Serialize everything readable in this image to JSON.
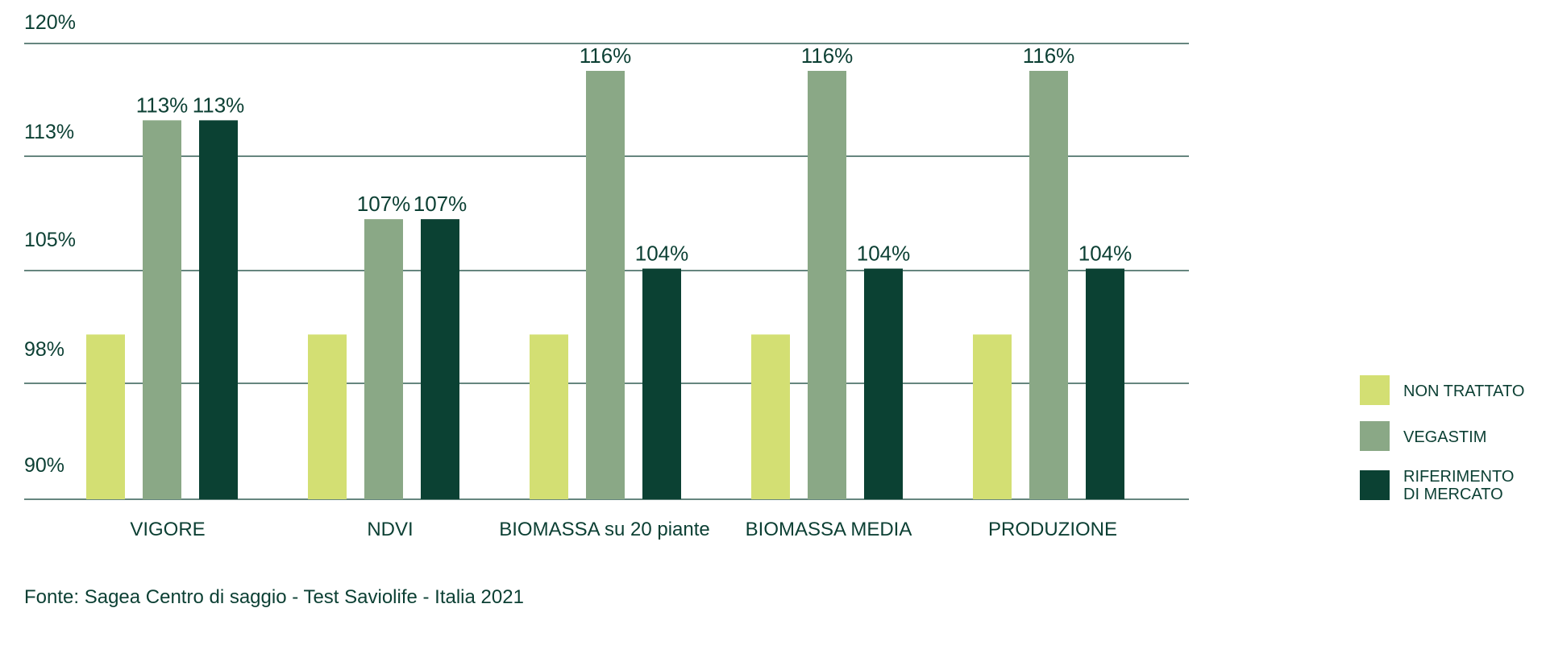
{
  "chart_data": {
    "type": "bar",
    "categories": [
      "VIGORE",
      "NDVI",
      "BIOMASSA su 20 piante",
      "BIOMASSA MEDIA",
      "PRODUZIONE"
    ],
    "series": [
      {
        "name": "NON TRATTATO",
        "color": "#d3df73",
        "values": [
          100,
          100,
          100,
          100,
          100
        ],
        "labels": [
          "",
          "",
          "",
          "",
          ""
        ]
      },
      {
        "name": "VEGASTIM",
        "color": "#8aa886",
        "values": [
          113,
          107,
          116,
          116,
          116
        ],
        "labels": [
          "113%",
          "107%",
          "116%",
          "116%",
          "116%"
        ]
      },
      {
        "name": "RIFERIMENTO DI MERCATO",
        "legend_lines": [
          "RIFERIMENTO",
          "DI MERCATO"
        ],
        "color": "#0b4133",
        "values": [
          113,
          107,
          104,
          104,
          104
        ],
        "labels": [
          "113%",
          "107%",
          "104%",
          "104%",
          "104%"
        ]
      }
    ],
    "y_ticks": [
      "120%",
      "113%",
      "105%",
      "98%",
      "90%"
    ],
    "ylim": [
      90,
      120
    ],
    "grid": true,
    "legend_position": "right",
    "source": "Fonte: Sagea Centro di saggio - Test Saviolife - Italia 2021"
  }
}
